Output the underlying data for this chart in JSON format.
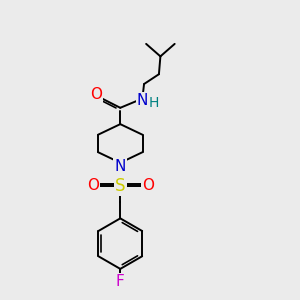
{
  "background_color": "#ebebeb",
  "bond_color": "#000000",
  "bond_width": 1.4,
  "fig_width": 3.0,
  "fig_height": 3.0,
  "dpi": 100,
  "colors": {
    "F": "#cc00cc",
    "O": "#ff0000",
    "S": "#cccc00",
    "N": "#0000cc",
    "H": "#008080",
    "C": "#000000"
  },
  "fontsize": 10
}
